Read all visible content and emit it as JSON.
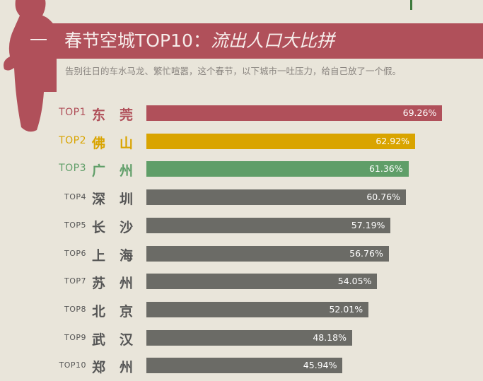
{
  "header": {
    "number": "一",
    "title": "春节空城TOP10：",
    "subtitle": "流出人口大比拼",
    "description": "告别往日的车水马龙、繁忙喧嚣，这个春节，以下城市一吐压力，给自己放了一个假。"
  },
  "colors": {
    "top1": "#b0505a",
    "top2": "#d9a400",
    "top3": "#5f9e68",
    "other": "#6b6b66",
    "banner": "#b0505a",
    "background": "#e9e5da"
  },
  "chart_data": {
    "type": "bar",
    "orientation": "horizontal",
    "title": "春节空城TOP10：流出人口大比拼",
    "ranks": [
      "TOP1",
      "TOP2",
      "TOP3",
      "TOP4",
      "TOP5",
      "TOP6",
      "TOP7",
      "TOP8",
      "TOP9",
      "TOP10"
    ],
    "categories": [
      "东莞",
      "佛山",
      "广州",
      "深圳",
      "长沙",
      "上海",
      "苏州",
      "北京",
      "武汉",
      "郑州"
    ],
    "values": [
      69.26,
      62.92,
      61.36,
      60.76,
      57.19,
      56.76,
      54.05,
      52.01,
      48.18,
      45.94
    ],
    "labels": [
      "69.26%",
      "62.92%",
      "61.36%",
      "60.76%",
      "57.19%",
      "56.76%",
      "54.05%",
      "52.01%",
      "48.18%",
      "45.94%"
    ],
    "unit": "%"
  }
}
